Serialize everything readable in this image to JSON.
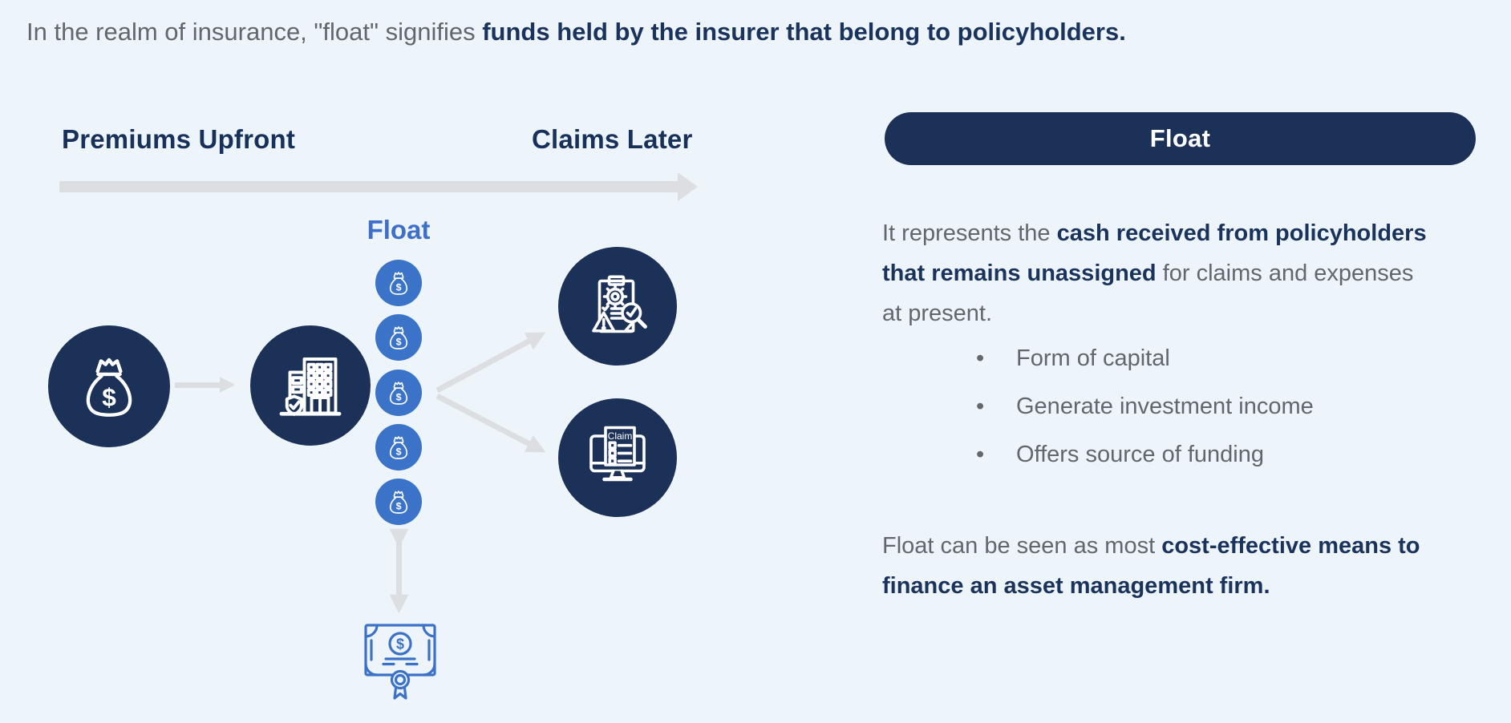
{
  "header": {
    "prefix": "In the realm of insurance, \"float\" signifies ",
    "emphasis": "funds held by the insurer that belong to policyholders."
  },
  "diagram": {
    "left_heading": "Premiums Upfront",
    "right_heading": "Claims Later",
    "float_label": "Float",
    "coin_count": 5,
    "dollar": "$",
    "claim_screen_label": "Claim"
  },
  "panel": {
    "title": "Float",
    "paragraph1": {
      "normal1": "It represents the ",
      "bold": "cash received from policyholders that remains unassigned",
      "normal2": " for claims and expenses at present."
    },
    "bullets": [
      "Form of capital",
      "Generate investment income",
      "Offers source of funding"
    ],
    "paragraph2": {
      "normal1": "Float can be seen as most ",
      "bold": "cost-effective means to finance an asset management firm."
    }
  },
  "colors": {
    "background": "#eef5fa",
    "navy": "#1b3158",
    "blue": "#3b73c9",
    "gray_text": "#62666d",
    "arrow_gray": "#dcdee1",
    "white": "#ffffff"
  }
}
